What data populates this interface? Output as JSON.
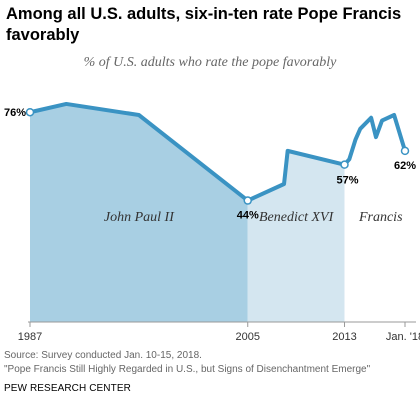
{
  "title": "Among all U.S. adults, six-in-ten rate Pope Francis favorably",
  "subtitle": "% of U.S. adults who rate the pope favorably",
  "chart_data": {
    "type": "area",
    "x": [
      1987,
      1990,
      1996,
      2005,
      2008,
      2008.3,
      2013,
      2013.4,
      2013.9,
      2014.3,
      2015.2,
      2015.6,
      2016.1,
      2017.1,
      2018
    ],
    "values": [
      76,
      79,
      75,
      44,
      50,
      62,
      57,
      59,
      66,
      70,
      74,
      67,
      73,
      75,
      62
    ],
    "xlim": [
      1987,
      2018.5
    ],
    "ylim": [
      0,
      100
    ],
    "x_tick_labels": [
      {
        "x": 1987,
        "label": "1987"
      },
      {
        "x": 2005,
        "label": "2005"
      },
      {
        "x": 2013,
        "label": "2013"
      },
      {
        "x": 2018,
        "label": "Jan. '18"
      }
    ],
    "data_labels": [
      {
        "x": 1987,
        "y": 76,
        "label": "76%"
      },
      {
        "x": 2005,
        "y": 44,
        "label": "44%"
      },
      {
        "x": 2013,
        "y": 57,
        "label": "57%"
      },
      {
        "x": 2018,
        "y": 62,
        "label": "62%"
      }
    ],
    "eras": [
      {
        "label": "John Paul II",
        "start": 1987,
        "end": 2005,
        "fill": "#a8cfe3"
      },
      {
        "label": "Benedict XVI",
        "start": 2005,
        "end": 2013,
        "fill": "#d4e6f0"
      },
      {
        "label": "Francis",
        "start": 2013,
        "end": 2018,
        "fill": "#ffffff"
      }
    ],
    "line_color": "#3a93c3",
    "grid": false
  },
  "source": "Source: Survey conducted Jan. 10-15, 2018.",
  "note": "\"Pope Francis Still Highly Regarded in U.S., but Signs of Disenchantment Emerge\"",
  "credit": "PEW RESEARCH CENTER"
}
